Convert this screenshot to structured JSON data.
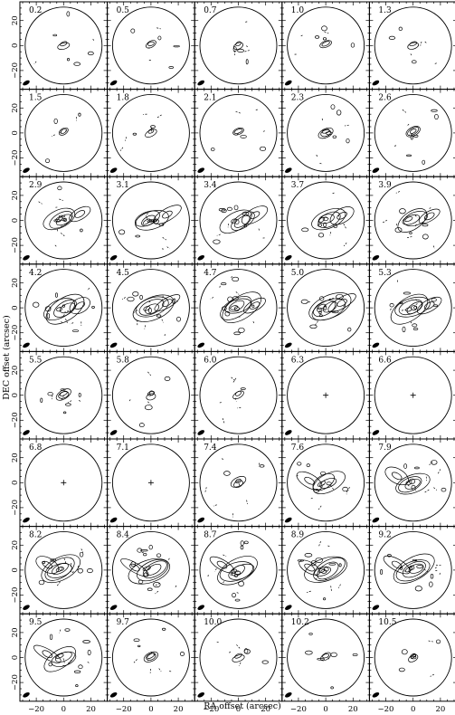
{
  "figure": {
    "xlabel": "RA offset (arcsec)",
    "ylabel": "DEC offset (arcsec)",
    "x_ticks": [
      "−20",
      "0",
      "20"
    ],
    "y_ticks": [
      "20",
      "0",
      "−20"
    ]
  },
  "chart_data": {
    "type": "channel-map grid",
    "rows": 8,
    "cols": 5,
    "xlabel": "RA offset (arcsec)",
    "ylabel": "DEC offset (arcsec)",
    "xlim": [
      -32,
      32
    ],
    "ylim": [
      -35,
      35
    ],
    "x_ticks": [
      -20,
      0,
      20
    ],
    "y_ticks": [
      20,
      0,
      -20
    ],
    "channels": [
      {
        "label": "0.2",
        "emission": 1
      },
      {
        "label": "0.5",
        "emission": 1
      },
      {
        "label": "0.7",
        "emission": 1
      },
      {
        "label": "1.0",
        "emission": 1
      },
      {
        "label": "1.3",
        "emission": 1
      },
      {
        "label": "1.5",
        "emission": 1
      },
      {
        "label": "1.8",
        "emission": 1
      },
      {
        "label": "2.1",
        "emission": 1
      },
      {
        "label": "2.3",
        "emission": 2
      },
      {
        "label": "2.6",
        "emission": 2
      },
      {
        "label": "2.9",
        "emission": 3
      },
      {
        "label": "3.1",
        "emission": 3
      },
      {
        "label": "3.4",
        "emission": 3
      },
      {
        "label": "3.7",
        "emission": 3
      },
      {
        "label": "3.9",
        "emission": 3
      },
      {
        "label": "4.2",
        "emission": 4
      },
      {
        "label": "4.5",
        "emission": 4
      },
      {
        "label": "4.7",
        "emission": 4
      },
      {
        "label": "5.0",
        "emission": 4
      },
      {
        "label": "5.3",
        "emission": 4
      },
      {
        "label": "5.5",
        "emission": 2
      },
      {
        "label": "5.8",
        "emission": 1
      },
      {
        "label": "6.0",
        "emission": 1
      },
      {
        "label": "6.3",
        "emission": 0
      },
      {
        "label": "6.6",
        "emission": 0
      },
      {
        "label": "6.8",
        "emission": 0
      },
      {
        "label": "7.1",
        "emission": 0
      },
      {
        "label": "7.4",
        "emission": 2
      },
      {
        "label": "7.6",
        "emission": 3
      },
      {
        "label": "7.9",
        "emission": 3
      },
      {
        "label": "8.2",
        "emission": 4
      },
      {
        "label": "8.4",
        "emission": 4
      },
      {
        "label": "8.7",
        "emission": 4
      },
      {
        "label": "8.9",
        "emission": 4
      },
      {
        "label": "9.2",
        "emission": 4
      },
      {
        "label": "9.5",
        "emission": 3
      },
      {
        "label": "9.7",
        "emission": 2
      },
      {
        "label": "10.0",
        "emission": 1
      },
      {
        "label": "10.2",
        "emission": 1
      },
      {
        "label": "10.5",
        "emission": 1
      }
    ]
  }
}
